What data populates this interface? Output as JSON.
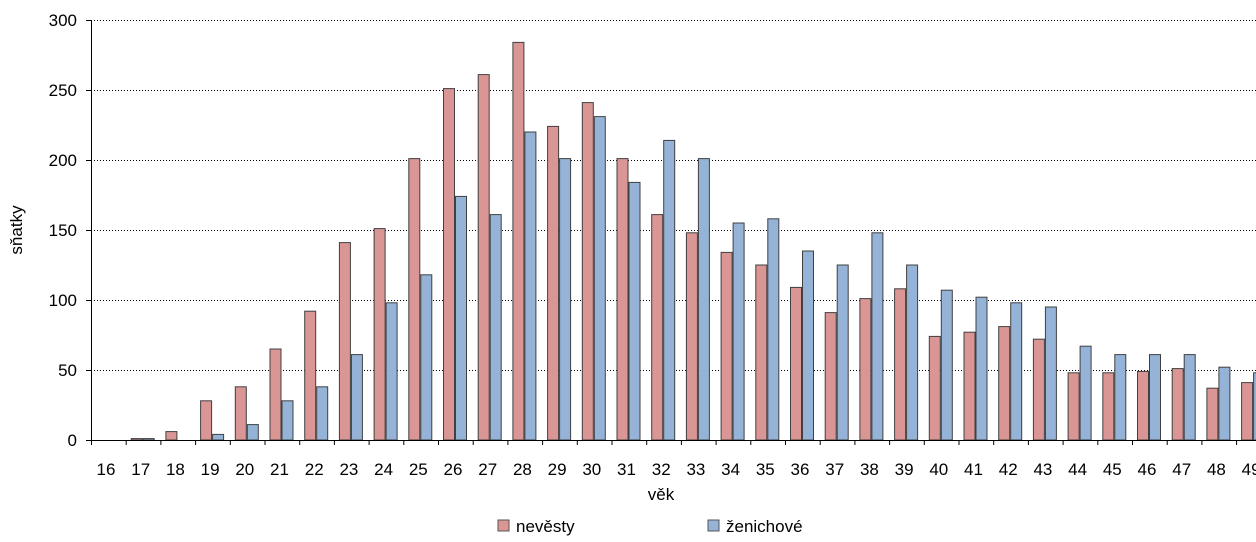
{
  "chart_data": {
    "type": "bar",
    "title": "",
    "xlabel": "věk",
    "ylabel": "sňatky",
    "ylim": [
      0,
      300
    ],
    "yticks": [
      0,
      50,
      100,
      150,
      200,
      250,
      300
    ],
    "grid": "horizontal dotted",
    "legend_position": "bottom",
    "categories": [
      "16",
      "17",
      "18",
      "19",
      "20",
      "21",
      "22",
      "23",
      "24",
      "25",
      "26",
      "27",
      "28",
      "29",
      "30",
      "31",
      "32",
      "33",
      "34",
      "35",
      "36",
      "37",
      "38",
      "39",
      "40",
      "41",
      "42",
      "43",
      "44",
      "45",
      "46",
      "47",
      "48",
      "49"
    ],
    "series": [
      {
        "name": "nevěsty",
        "color": "#d99694",
        "values": [
          0,
          1,
          6,
          28,
          38,
          65,
          92,
          141,
          151,
          201,
          251,
          261,
          284,
          224,
          241,
          201,
          161,
          148,
          134,
          125,
          109,
          91,
          101,
          108,
          74,
          77,
          81,
          72,
          48,
          48,
          49,
          51,
          37,
          41
        ]
      },
      {
        "name": "ženichové",
        "color": "#95b3d7",
        "values": [
          0,
          1,
          0,
          4,
          11,
          28,
          38,
          61,
          98,
          118,
          174,
          161,
          220,
          201,
          231,
          184,
          214,
          201,
          155,
          158,
          135,
          125,
          148,
          125,
          107,
          102,
          98,
          95,
          67,
          61,
          61,
          61,
          52,
          48
        ]
      }
    ]
  }
}
